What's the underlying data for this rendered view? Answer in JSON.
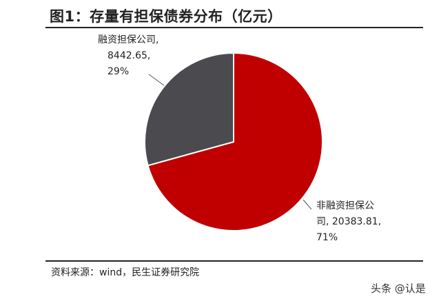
{
  "header": {
    "title": "图1：存量有担保债券分布（亿元）"
  },
  "footer": {
    "source": "资料来源：wind，民生证券研究院"
  },
  "watermark": {
    "text": "头条 @认是"
  },
  "colors": {
    "slice_guaranteed_financing": "#4a4a4f",
    "slice_non_financing": "#c00000",
    "rule": "#222222"
  },
  "chart_data": {
    "type": "pie",
    "title": "图1：存量有担保债券分布（亿元）",
    "slices": [
      {
        "label": "融资担保公司",
        "value": 8442.65,
        "percent": "29%",
        "color": "#4a4a4f",
        "label_lines": [
          "融资担保公司,",
          "8442.65,",
          "29%"
        ]
      },
      {
        "label": "非融资担保公司",
        "value": 20383.81,
        "percent": "71%",
        "color": "#c00000",
        "label_lines": [
          "非融资担保公",
          "司, 20383.81,",
          "71%"
        ]
      }
    ],
    "start_angle": "12 o'clock",
    "direction": "clockwise, 非融资担保公司 first"
  }
}
